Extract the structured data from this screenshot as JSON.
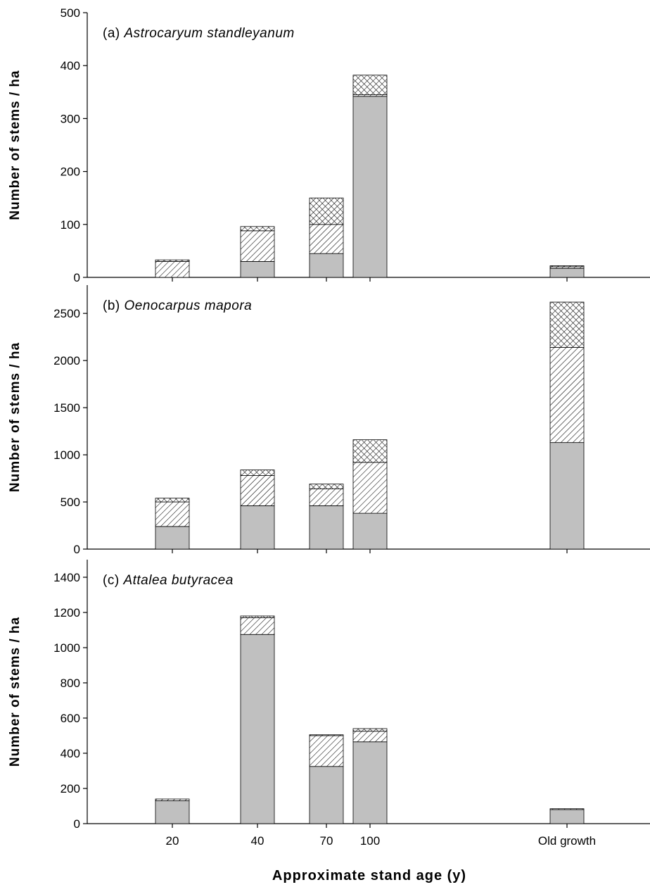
{
  "chart_data": [
    {
      "type": "bar",
      "stacked": true,
      "panel_label": "(a)",
      "title": "Astrocaryum standleyanum",
      "categories": [
        "20",
        "40",
        "70",
        "100",
        "Old growth"
      ],
      "ylabel": "Number of stems / ha",
      "ylim": [
        0,
        500
      ],
      "yticks": [
        0,
        100,
        200,
        300,
        400,
        500
      ],
      "grid": false,
      "series": [
        {
          "fill": "gray",
          "values": [
            0,
            30,
            45,
            342,
            17
          ]
        },
        {
          "fill": "hatched",
          "values": [
            30,
            58,
            55,
            3,
            3
          ]
        },
        {
          "fill": "cross-hatched",
          "values": [
            3,
            8,
            50,
            37,
            2
          ]
        }
      ]
    },
    {
      "type": "bar",
      "stacked": true,
      "panel_label": "(b)",
      "title": "Oenocarpus mapora",
      "categories": [
        "20",
        "40",
        "70",
        "100",
        "Old growth"
      ],
      "ylabel": "Number of stems / ha",
      "ylim": [
        0,
        2800
      ],
      "yticks": [
        0,
        500,
        1000,
        1500,
        2000,
        2500
      ],
      "grid": false,
      "series": [
        {
          "fill": "gray",
          "values": [
            240,
            460,
            460,
            380,
            1130
          ]
        },
        {
          "fill": "hatched",
          "values": [
            260,
            320,
            180,
            540,
            1010
          ]
        },
        {
          "fill": "cross-hatched",
          "values": [
            40,
            60,
            50,
            240,
            480
          ]
        }
      ]
    },
    {
      "type": "bar",
      "stacked": true,
      "panel_label": "(c)",
      "title": "Attalea butyracea",
      "categories": [
        "20",
        "40",
        "70",
        "100",
        "Old growth"
      ],
      "ylabel": "Number of stems / ha",
      "xlabel": "Approximate stand age (y)",
      "ylim": [
        0,
        1500
      ],
      "yticks": [
        0,
        200,
        400,
        600,
        800,
        1000,
        1200,
        1400
      ],
      "grid": false,
      "series": [
        {
          "fill": "gray",
          "values": [
            130,
            1075,
            325,
            465,
            80
          ]
        },
        {
          "fill": "hatched",
          "values": [
            10,
            95,
            175,
            60,
            5
          ]
        },
        {
          "fill": "cross-hatched",
          "values": [
            0,
            10,
            5,
            15,
            0
          ]
        }
      ]
    }
  ],
  "colors": {
    "gray": "#c0c0c0",
    "stroke": "#000000"
  }
}
